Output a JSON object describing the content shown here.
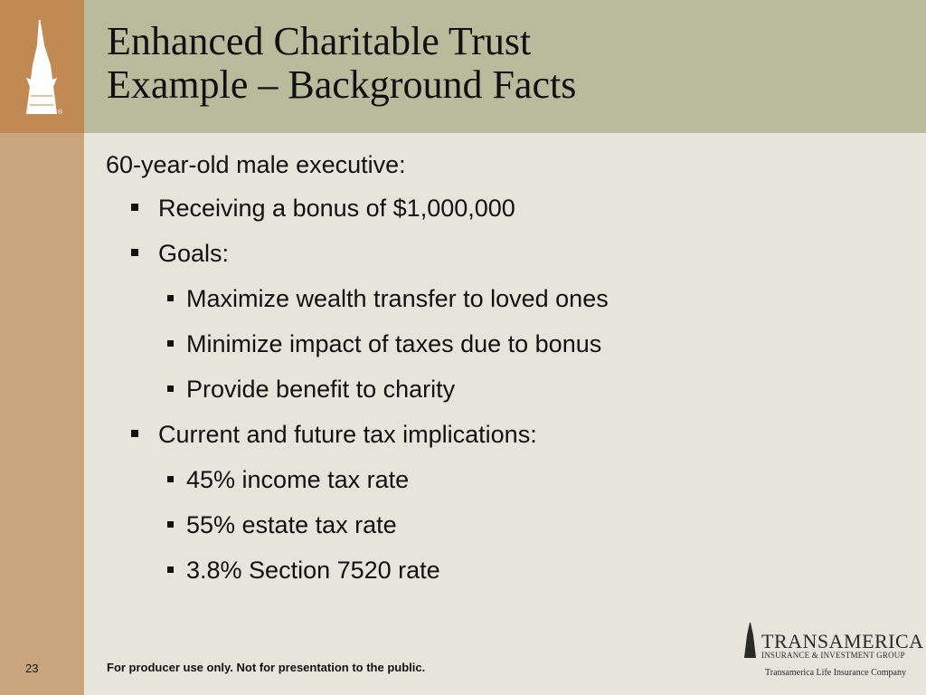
{
  "slide": {
    "title_line1": "Enhanced Charitable Trust",
    "title_line2": "Example – Background Facts",
    "page_number": "23"
  },
  "content": {
    "intro": "60-year-old male executive:",
    "bullets": [
      {
        "level": 1,
        "text": "Receiving a bonus of $1,000,000"
      },
      {
        "level": 1,
        "text": "Goals:"
      },
      {
        "level": 2,
        "text": "Maximize wealth transfer to loved ones"
      },
      {
        "level": 2,
        "text": "Minimize impact of taxes due to bonus"
      },
      {
        "level": 2,
        "text": "Provide benefit to charity"
      },
      {
        "level": 1,
        "text": "Current and future tax implications:"
      },
      {
        "level": 2,
        "text": "45% income tax rate"
      },
      {
        "level": 2,
        "text": "55% estate tax rate"
      },
      {
        "level": 2,
        "text": "3.8% Section 7520 rate"
      }
    ]
  },
  "footer": {
    "disclaimer": "For producer use only. Not for presentation to the public."
  },
  "brand": {
    "name": "TRANSAMERICA",
    "tagline": "INSURANCE & INVESTMENT GROUP",
    "company": "Transamerica Life Insurance Company",
    "registered_mark": "®",
    "logo_icon": "pyramid-tower-icon"
  },
  "colors": {
    "header_bg": "#b8bc9c",
    "sidebar_top": "#c08a52",
    "sidebar_bottom": "#c8a57d",
    "body_bg": "#e7e5db"
  }
}
